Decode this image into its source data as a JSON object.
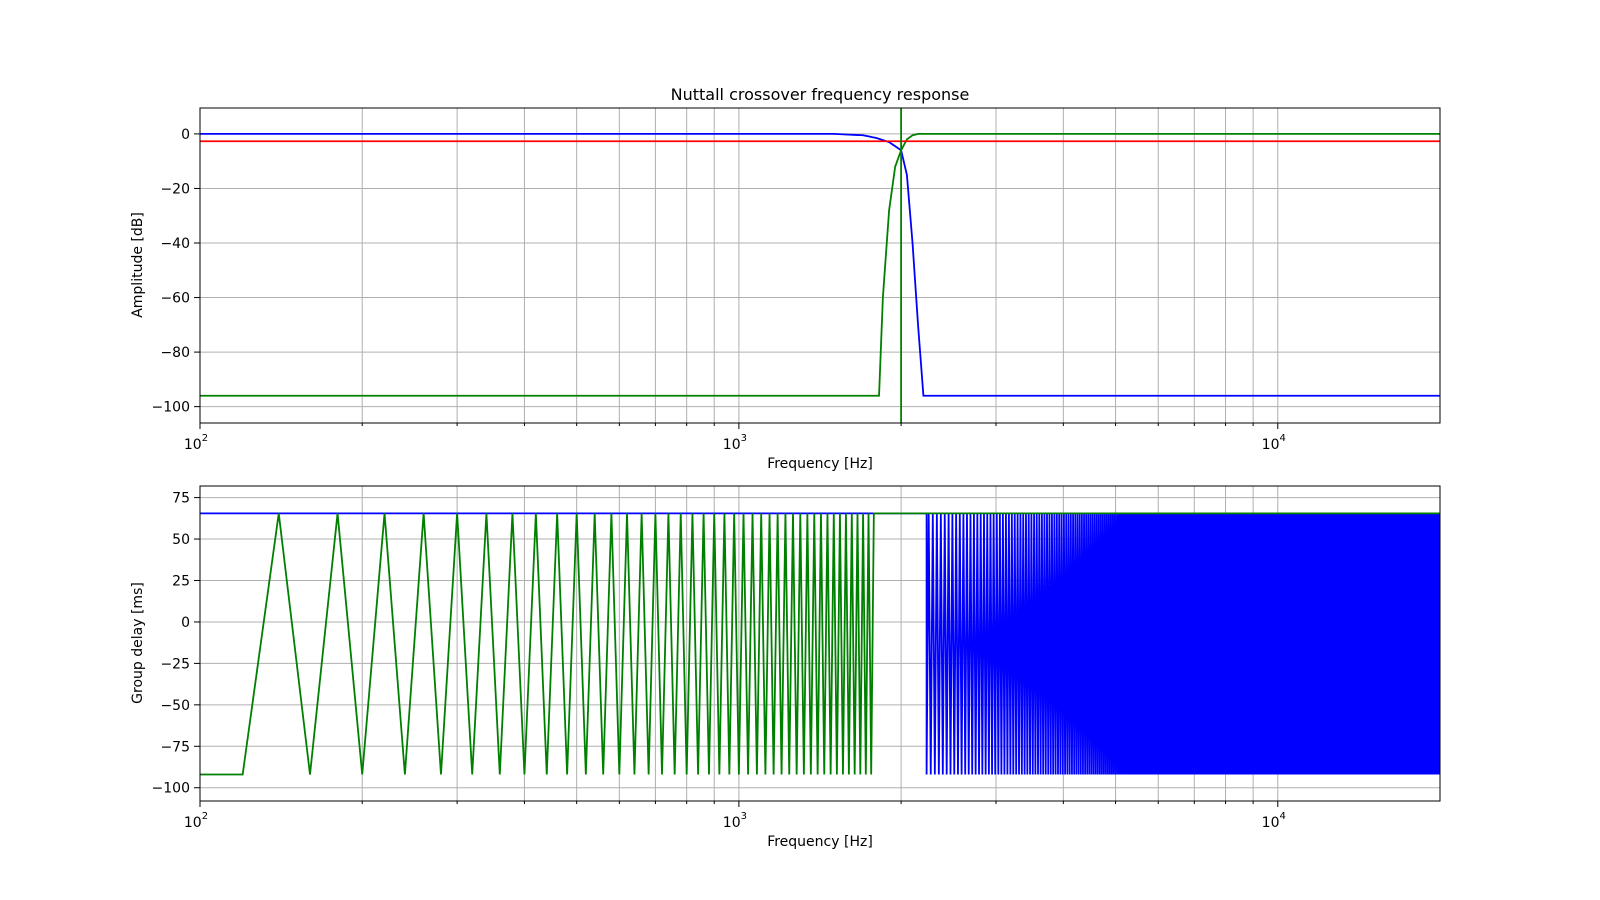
{
  "chart_data": [
    {
      "type": "line",
      "title": "Nuttall crossover frequency response",
      "xlabel": "Frequency [Hz]",
      "ylabel": "Amplitude [dB]",
      "xscale": "log",
      "xlim": [
        100,
        20000
      ],
      "ylim": [
        -106,
        9.5
      ],
      "grid": true,
      "x_major_ticks": [
        {
          "value": 100,
          "base": "10",
          "exp": "2"
        },
        {
          "value": 1000,
          "base": "10",
          "exp": "3"
        },
        {
          "value": 10000,
          "base": "10",
          "exp": "4"
        }
      ],
      "x_minor_ticks": [
        200,
        300,
        400,
        500,
        600,
        700,
        800,
        900,
        2000,
        3000,
        4000,
        5000,
        6000,
        7000,
        8000,
        9000
      ],
      "y_ticks": [
        {
          "value": 0,
          "label": "0"
        },
        {
          "value": -20,
          "label": "−20"
        },
        {
          "value": -40,
          "label": "−40"
        },
        {
          "value": -60,
          "label": "−60"
        },
        {
          "value": -80,
          "label": "−80"
        },
        {
          "value": -100,
          "label": "−100"
        }
      ],
      "vline": {
        "x": 2000,
        "color": "#008000"
      },
      "series": [
        {
          "color": "#0000ff",
          "x": [
            100,
            1500,
            1700,
            1800,
            1900,
            2000,
            2050,
            2100,
            2150,
            2200,
            20000
          ],
          "y": [
            0,
            0,
            -0.5,
            -1.5,
            -3,
            -6,
            -15,
            -40,
            -70,
            -96,
            -96
          ]
        },
        {
          "color": "#008000",
          "x": [
            100,
            1820,
            1850,
            1900,
            1950,
            2000,
            2050,
            2100,
            2150,
            20000
          ],
          "y": [
            -96,
            -96,
            -60,
            -28,
            -12,
            -6,
            -2,
            -0.5,
            0,
            0
          ]
        },
        {
          "color": "#ff0000",
          "x": [
            100,
            20000
          ],
          "y": [
            -2.7,
            -2.7
          ]
        }
      ]
    },
    {
      "type": "line",
      "title": "",
      "xlabel": "Frequency [Hz]",
      "ylabel": "Group delay [ms]",
      "xscale": "log",
      "xlim": [
        100,
        20000
      ],
      "ylim": [
        -108,
        82
      ],
      "grid": true,
      "x_major_ticks": [
        {
          "value": 100,
          "base": "10",
          "exp": "2"
        },
        {
          "value": 1000,
          "base": "10",
          "exp": "3"
        },
        {
          "value": 10000,
          "base": "10",
          "exp": "4"
        }
      ],
      "x_minor_ticks": [
        200,
        300,
        400,
        500,
        600,
        700,
        800,
        900,
        2000,
        3000,
        4000,
        5000,
        6000,
        7000,
        8000,
        9000
      ],
      "y_ticks": [
        {
          "value": 75,
          "label": "75"
        },
        {
          "value": 50,
          "label": "50"
        },
        {
          "value": 25,
          "label": "25"
        },
        {
          "value": 0,
          "label": "0"
        },
        {
          "value": -25,
          "label": "−25"
        },
        {
          "value": -50,
          "label": "−50"
        },
        {
          "value": -75,
          "label": "−75"
        },
        {
          "value": -100,
          "label": "−100"
        }
      ],
      "series": [
        {
          "color": "#0000ff",
          "high": 65.5,
          "low": -92,
          "x_flat_end": 2230,
          "oscillation_start": 2230,
          "oscillation_step_hz": 40,
          "x_end": 20000
        },
        {
          "color": "#008000",
          "high": 65.5,
          "low": -92,
          "x_start": 100,
          "oscillation_start": 120,
          "oscillation_step_hz": 40,
          "oscillation_end": 1780,
          "x_end": 20000
        }
      ]
    }
  ]
}
